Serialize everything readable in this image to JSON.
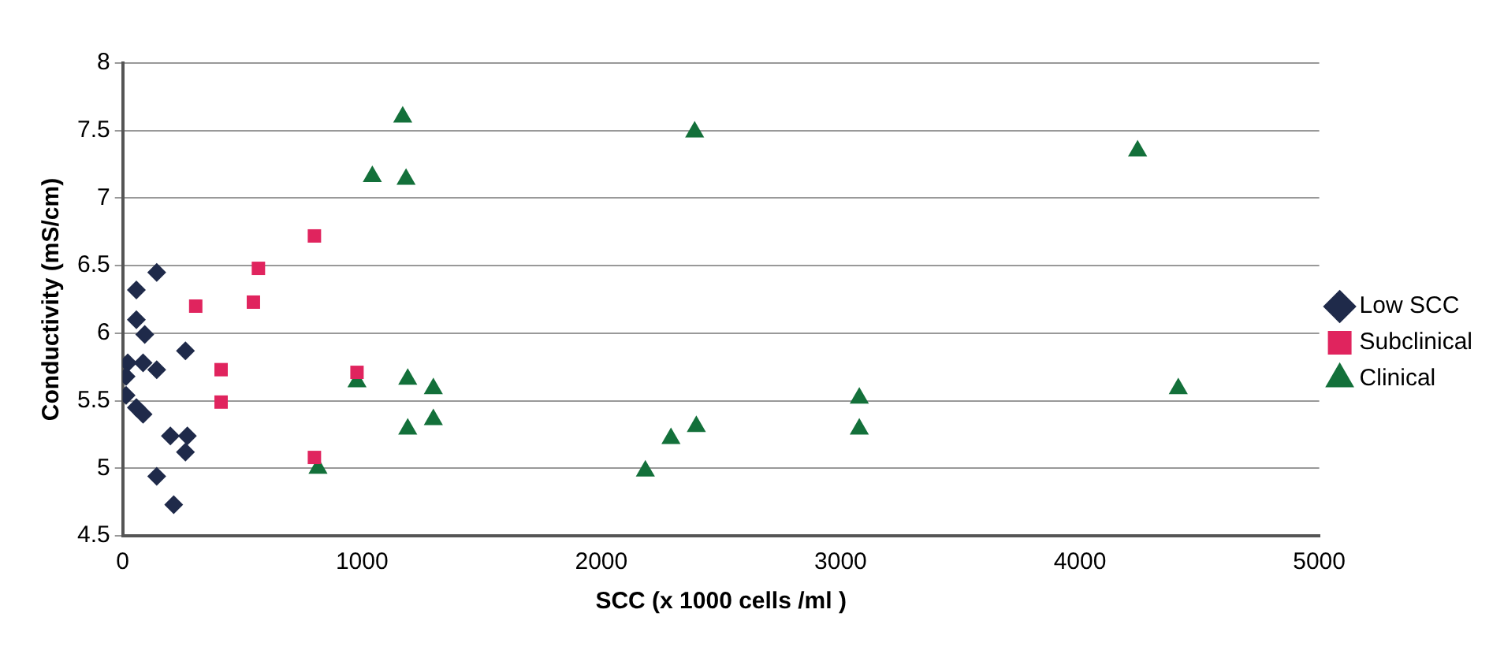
{
  "chart_data": {
    "type": "scatter",
    "xlabel": "SCC (x 1000 cells /ml )",
    "ylabel": "Conductivity (mS/cm)",
    "xlim": [
      0,
      5000
    ],
    "xticks": [
      0,
      1000,
      2000,
      3000,
      4000,
      5000
    ],
    "ylim": [
      4.5,
      8
    ],
    "yticks": [
      4.5,
      5,
      5.5,
      6,
      6.5,
      7,
      7.5,
      8
    ],
    "grid": "y",
    "legend": "right",
    "series": [
      {
        "name": "Low SCC",
        "color": "#1f2a4a",
        "marker": "diamond",
        "x": [
          142,
          57,
          57,
          92,
          21,
          85,
          142,
          262,
          14,
          57,
          85,
          199,
          270,
          262,
          142,
          213,
          14
        ],
        "values": [
          6.45,
          6.32,
          6.1,
          5.99,
          5.78,
          5.78,
          5.73,
          5.87,
          5.54,
          5.45,
          5.4,
          5.24,
          5.24,
          5.12,
          4.94,
          4.73,
          5.68
        ]
      },
      {
        "name": "Subclinical",
        "color": "#e0245e",
        "marker": "square",
        "x": [
          305,
          567,
          546,
          801,
          411,
          411,
          979,
          801
        ],
        "values": [
          6.2,
          6.48,
          6.23,
          6.72,
          5.73,
          5.49,
          5.71,
          5.08
        ]
      },
      {
        "name": "Clinical",
        "color": "#13703a",
        "marker": "triangle",
        "x": [
          1170,
          1043,
          1184,
          979,
          1191,
          1298,
          1191,
          1298,
          816,
          2390,
          2184,
          2291,
          2397,
          3078,
          3078,
          4241,
          4411
        ],
        "values": [
          7.6,
          7.16,
          7.14,
          5.64,
          5.66,
          5.59,
          5.29,
          5.36,
          5.0,
          7.49,
          4.98,
          5.22,
          5.31,
          5.52,
          5.29,
          7.35,
          5.59
        ]
      }
    ]
  }
}
